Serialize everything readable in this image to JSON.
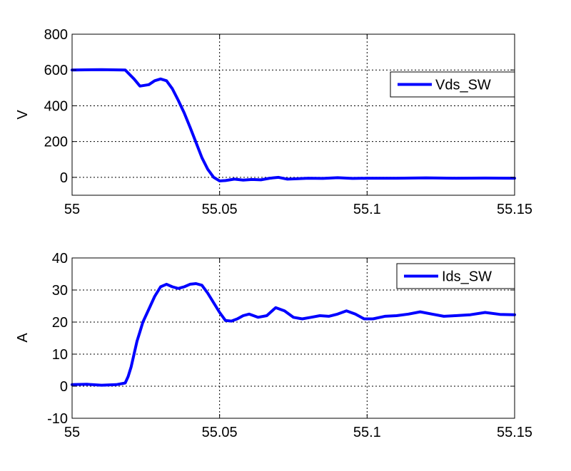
{
  "chart_data": [
    {
      "type": "line",
      "xlabel": "",
      "ylabel": "V",
      "xlim": [
        55,
        55.15
      ],
      "ylim": [
        -100,
        800
      ],
      "xticks": [
        55,
        55.05,
        55.1,
        55.15
      ],
      "xtick_labels": [
        "55",
        "55.05",
        "55.1",
        "55.15"
      ],
      "yticks": [
        0,
        200,
        400,
        600,
        800
      ],
      "ytick_labels": [
        "0",
        "200",
        "400",
        "600",
        "800"
      ],
      "grid": true,
      "legend_position": "top-right",
      "series": [
        {
          "name": "Vds_SW",
          "color": "#0000ff",
          "x": [
            55.0,
            55.01,
            55.018,
            55.021,
            55.023,
            55.026,
            55.028,
            55.03,
            55.032,
            55.034,
            55.036,
            55.038,
            55.04,
            55.042,
            55.044,
            55.046,
            55.048,
            55.05,
            55.052,
            55.055,
            55.058,
            55.061,
            55.064,
            55.067,
            55.07,
            55.073,
            55.076,
            55.08,
            55.085,
            55.09,
            55.095,
            55.1,
            55.11,
            55.12,
            55.13,
            55.14,
            55.15
          ],
          "y": [
            600,
            602,
            600,
            550,
            510,
            518,
            540,
            550,
            540,
            495,
            430,
            360,
            280,
            195,
            110,
            45,
            0,
            -20,
            -18,
            -10,
            -15,
            -12,
            -14,
            -5,
            0,
            -10,
            -8,
            -5,
            -6,
            -2,
            -6,
            -5,
            -5,
            -3,
            -5,
            -4,
            -5
          ]
        }
      ]
    },
    {
      "type": "line",
      "xlabel": "",
      "ylabel": "A",
      "xlim": [
        55,
        55.15
      ],
      "ylim": [
        -10,
        40
      ],
      "xticks": [
        55,
        55.05,
        55.1,
        55.15
      ],
      "xtick_labels": [
        "55",
        "55.05",
        "55.1",
        "55.15"
      ],
      "yticks": [
        -10,
        0,
        10,
        20,
        30,
        40
      ],
      "ytick_labels": [
        "-10",
        "0",
        "10",
        "20",
        "30",
        "40"
      ],
      "grid": true,
      "legend_position": "top-right",
      "series": [
        {
          "name": "Ids_SW",
          "color": "#0000ff",
          "x": [
            55.0,
            55.005,
            55.01,
            55.015,
            55.018,
            55.019,
            55.02,
            55.021,
            55.022,
            55.023,
            55.024,
            55.026,
            55.028,
            55.03,
            55.032,
            55.034,
            55.036,
            55.038,
            55.04,
            55.042,
            55.044,
            55.046,
            55.048,
            55.05,
            55.052,
            55.054,
            55.056,
            55.058,
            55.06,
            55.063,
            55.066,
            55.069,
            55.072,
            55.075,
            55.078,
            55.081,
            55.084,
            55.087,
            55.09,
            55.093,
            55.096,
            55.099,
            55.102,
            55.106,
            55.11,
            55.114,
            55.118,
            55.122,
            55.126,
            55.13,
            55.135,
            55.14,
            55.145,
            55.15
          ],
          "y": [
            0.5,
            0.6,
            0.3,
            0.5,
            1,
            3,
            6,
            10,
            14,
            17,
            20,
            24,
            28,
            31,
            31.8,
            31,
            30.5,
            31,
            31.8,
            32,
            31.5,
            29,
            26,
            23,
            20.5,
            20.3,
            21,
            22,
            22.5,
            21.5,
            22,
            24.5,
            23.5,
            21.5,
            21,
            21.5,
            22,
            21.8,
            22.5,
            23.5,
            22.5,
            21,
            21,
            21.8,
            22,
            22.5,
            23.2,
            22.5,
            21.8,
            22,
            22.3,
            23,
            22.4,
            22.3
          ]
        }
      ]
    }
  ]
}
